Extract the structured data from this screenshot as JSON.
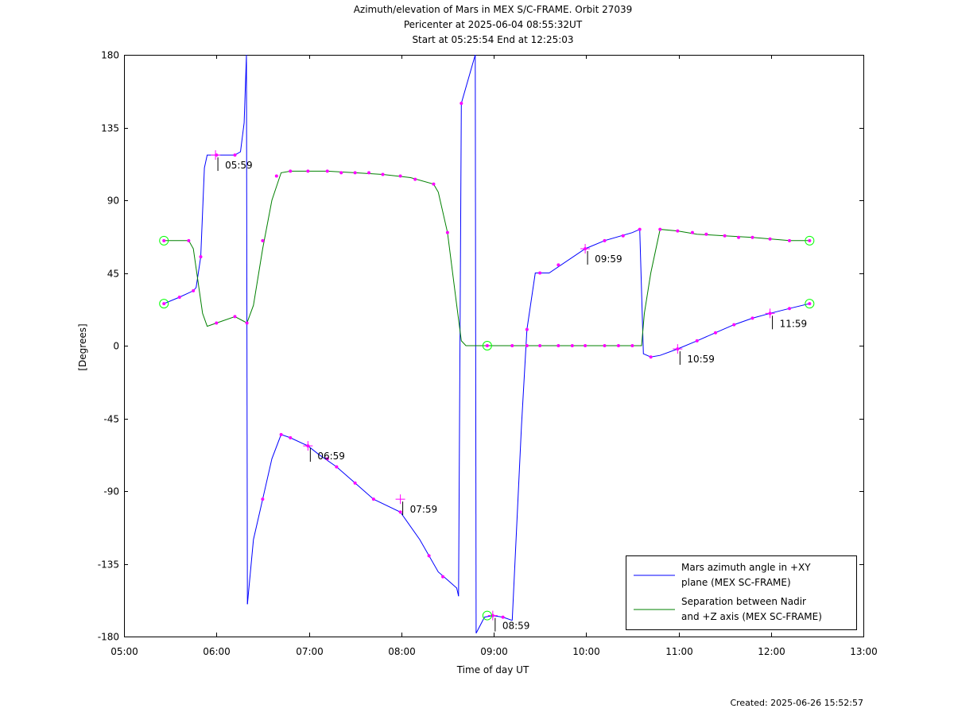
{
  "chart_data": {
    "type": "line",
    "title_lines": [
      "Azimuth/elevation of Mars in MEX S/C-FRAME.  Orbit 27039",
      "Pericenter at 2025-06-04 08:55:32UT",
      "Start at 05:25:54 End at 12:25:03"
    ],
    "xlabel": "Time of day UT",
    "ylabel": "[Degrees]",
    "x_unit": "hours of day",
    "xlim": [
      5,
      13
    ],
    "ylim": [
      -180,
      180
    ],
    "xticks": [
      5,
      6,
      7,
      8,
      9,
      10,
      11,
      12,
      13
    ],
    "xtick_labels": [
      "05:00",
      "06:00",
      "07:00",
      "08:00",
      "09:00",
      "10:00",
      "11:00",
      "12:00",
      "13:00"
    ],
    "yticks": [
      -180,
      -135,
      -90,
      -45,
      0,
      45,
      90,
      135,
      180
    ],
    "ytick_labels": [
      "-180",
      "-135",
      "-90",
      "-45",
      "0",
      "45",
      "90",
      "135",
      "180"
    ],
    "legend_position": "bottom-right",
    "series": [
      {
        "name": "Mars azimuth angle in +XY plane (MEX SC-FRAME)",
        "legend_lines": [
          "Mars azimuth angle in +XY",
          "plane (MEX SC-FRAME)"
        ],
        "color": "#0000ff",
        "segments": [
          [
            [
              5.432,
              26
            ],
            [
              5.6,
              30
            ],
            [
              5.75,
              34
            ],
            [
              5.78,
              36
            ],
            [
              5.83,
              55
            ],
            [
              5.87,
              110
            ],
            [
              5.9,
              118
            ],
            [
              6.0,
              118
            ],
            [
              6.2,
              118
            ],
            [
              6.26,
              120
            ],
            [
              6.3,
              138
            ],
            [
              6.325,
              180
            ]
          ],
          [
            [
              6.325,
              180
            ],
            [
              6.335,
              -160
            ]
          ],
          [
            [
              6.335,
              -160
            ],
            [
              6.4,
              -120
            ],
            [
              6.5,
              -95
            ],
            [
              6.6,
              -70
            ],
            [
              6.7,
              -55
            ],
            [
              6.8,
              -57
            ],
            [
              6.99,
              -62
            ],
            [
              7.1,
              -67
            ],
            [
              7.3,
              -75
            ],
            [
              7.5,
              -85
            ],
            [
              7.7,
              -95
            ],
            [
              7.99,
              -103
            ],
            [
              8.2,
              -120
            ],
            [
              8.4,
              -140
            ],
            [
              8.5,
              -145
            ],
            [
              8.6,
              -150
            ],
            [
              8.62,
              -155
            ]
          ],
          [
            [
              8.62,
              -155
            ],
            [
              8.65,
              150
            ],
            [
              8.8,
              180
            ]
          ],
          [
            [
              8.8,
              180
            ],
            [
              8.81,
              -178
            ]
          ],
          [
            [
              8.81,
              -178
            ],
            [
              8.9,
              -168
            ],
            [
              8.99,
              -167
            ],
            [
              9.1,
              -168
            ],
            [
              9.2,
              -170
            ]
          ],
          [
            [
              9.2,
              -170
            ],
            [
              9.3,
              -50
            ],
            [
              9.36,
              10
            ],
            [
              9.45,
              45
            ],
            [
              9.6,
              45
            ],
            [
              9.99,
              60
            ],
            [
              10.2,
              65
            ],
            [
              10.5,
              70
            ],
            [
              10.58,
              72
            ],
            [
              10.62,
              -5
            ],
            [
              10.7,
              -7
            ],
            [
              10.8,
              -6
            ],
            [
              10.99,
              -2
            ],
            [
              11.2,
              3
            ],
            [
              11.4,
              8
            ],
            [
              11.6,
              13
            ],
            [
              11.8,
              17
            ],
            [
              11.99,
              20
            ],
            [
              12.2,
              23
            ],
            [
              12.418,
              26
            ]
          ]
        ],
        "markers": [
          [
            5.432,
            26
          ],
          [
            5.6,
            30
          ],
          [
            5.75,
            34
          ],
          [
            5.83,
            55
          ],
          [
            6.0,
            118
          ],
          [
            6.2,
            118
          ],
          [
            6.5,
            -95
          ],
          [
            6.7,
            -55
          ],
          [
            6.8,
            -57
          ],
          [
            6.99,
            -62
          ],
          [
            7.2,
            -70
          ],
          [
            7.3,
            -75
          ],
          [
            7.5,
            -85
          ],
          [
            7.7,
            -95
          ],
          [
            7.99,
            -103
          ],
          [
            8.3,
            -130
          ],
          [
            8.45,
            -143
          ],
          [
            8.65,
            150
          ],
          [
            8.99,
            -167
          ],
          [
            9.1,
            -168
          ],
          [
            9.36,
            10
          ],
          [
            9.5,
            45
          ],
          [
            9.7,
            50
          ],
          [
            9.99,
            60
          ],
          [
            10.2,
            65
          ],
          [
            10.4,
            68
          ],
          [
            10.58,
            72
          ],
          [
            10.7,
            -7
          ],
          [
            10.99,
            -2
          ],
          [
            11.2,
            3
          ],
          [
            11.4,
            8
          ],
          [
            11.6,
            13
          ],
          [
            11.8,
            17
          ],
          [
            11.99,
            20
          ],
          [
            12.2,
            23
          ],
          [
            12.418,
            26
          ]
        ],
        "tick_labels": [
          {
            "x": 5.99,
            "y": 118,
            "text": "05:59"
          },
          {
            "x": 6.99,
            "y": -62,
            "text": "06:59"
          },
          {
            "x": 7.99,
            "y": -95,
            "text": "07:59"
          },
          {
            "x": 8.99,
            "y": -167,
            "text": "08:59"
          },
          {
            "x": 9.99,
            "y": 60,
            "text": "09:59"
          },
          {
            "x": 10.99,
            "y": -2,
            "text": "10:59"
          },
          {
            "x": 11.99,
            "y": 20,
            "text": "11:59"
          }
        ]
      },
      {
        "name": "Separation between Nadir and +Z axis (MEX SC-FRAME)",
        "legend_lines": [
          "Separation between Nadir",
          "and +Z axis (MEX SC-FRAME)"
        ],
        "color": "#008000",
        "segments": [
          [
            [
              5.432,
              65
            ],
            [
              5.7,
              65
            ],
            [
              5.75,
              60
            ],
            [
              5.8,
              40
            ],
            [
              5.85,
              20
            ],
            [
              5.9,
              12
            ],
            [
              6.0,
              14
            ],
            [
              6.2,
              18
            ],
            [
              6.3,
              15
            ],
            [
              6.33,
              14
            ],
            [
              6.4,
              25
            ],
            [
              6.5,
              60
            ],
            [
              6.6,
              90
            ],
            [
              6.7,
              107
            ],
            [
              6.8,
              108
            ],
            [
              6.99,
              108
            ],
            [
              7.2,
              108
            ],
            [
              7.5,
              107
            ],
            [
              7.8,
              106
            ],
            [
              8.1,
              104
            ],
            [
              8.35,
              100
            ],
            [
              8.4,
              95
            ],
            [
              8.5,
              70
            ],
            [
              8.6,
              25
            ],
            [
              8.65,
              3
            ],
            [
              8.7,
              0
            ],
            [
              8.93,
              0
            ],
            [
              9.5,
              0
            ],
            [
              10.0,
              0
            ],
            [
              10.5,
              0
            ],
            [
              10.6,
              0
            ],
            [
              10.63,
              20
            ],
            [
              10.7,
              45
            ],
            [
              10.8,
              72
            ],
            [
              10.99,
              71
            ],
            [
              11.2,
              69
            ],
            [
              11.5,
              68
            ],
            [
              11.8,
              67
            ],
            [
              12.0,
              66
            ],
            [
              12.2,
              65
            ],
            [
              12.418,
              65
            ]
          ]
        ],
        "markers": [
          [
            5.432,
            65
          ],
          [
            5.7,
            65
          ],
          [
            6.0,
            14
          ],
          [
            6.2,
            18
          ],
          [
            6.33,
            14
          ],
          [
            6.5,
            65
          ],
          [
            6.65,
            105
          ],
          [
            6.8,
            108
          ],
          [
            6.99,
            108
          ],
          [
            7.2,
            108
          ],
          [
            7.35,
            107
          ],
          [
            7.5,
            107
          ],
          [
            7.65,
            107
          ],
          [
            7.8,
            106
          ],
          [
            7.99,
            105
          ],
          [
            8.15,
            103
          ],
          [
            8.35,
            100
          ],
          [
            8.5,
            70
          ],
          [
            8.93,
            0
          ],
          [
            9.2,
            0
          ],
          [
            9.36,
            0
          ],
          [
            9.5,
            0
          ],
          [
            9.7,
            0
          ],
          [
            9.85,
            0
          ],
          [
            9.99,
            0
          ],
          [
            10.2,
            0
          ],
          [
            10.35,
            0
          ],
          [
            10.5,
            0
          ],
          [
            10.8,
            72
          ],
          [
            10.99,
            71
          ],
          [
            11.15,
            70
          ],
          [
            11.3,
            69
          ],
          [
            11.5,
            68
          ],
          [
            11.65,
            67
          ],
          [
            11.8,
            67
          ],
          [
            11.99,
            66
          ],
          [
            12.2,
            65
          ],
          [
            12.418,
            65
          ]
        ]
      }
    ],
    "start_end_markers": [
      {
        "x": 5.432,
        "y": 65
      },
      {
        "x": 5.432,
        "y": 26
      },
      {
        "x": 8.93,
        "y": 0
      },
      {
        "x": 8.93,
        "y": -167
      },
      {
        "x": 12.418,
        "y": 65
      },
      {
        "x": 12.418,
        "y": 26
      }
    ],
    "created_text": "Created: 2025-06-26 15:52:57"
  }
}
